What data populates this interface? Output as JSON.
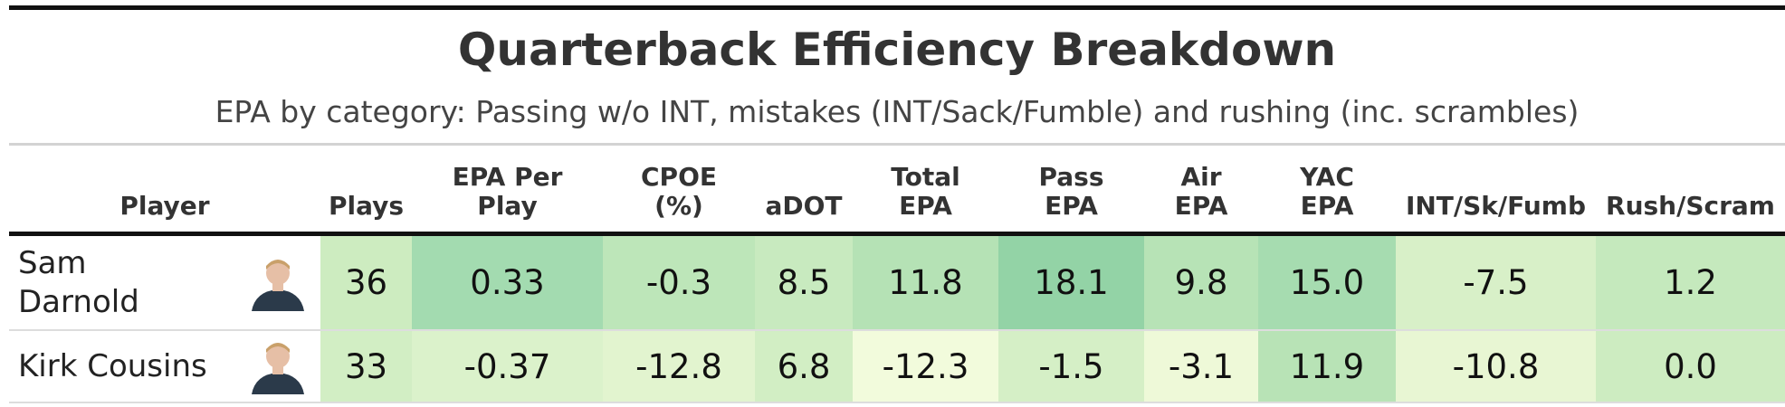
{
  "header": {
    "title": "Quarterback Efficiency Breakdown",
    "subtitle": "EPA by category: Passing w/o INT, mistakes (INT/Sack/Fumble) and rushing (inc. scrambles)"
  },
  "table": {
    "columns": [
      [
        "Player"
      ],
      [
        "Plays"
      ],
      [
        "EPA Per",
        "Play"
      ],
      [
        "CPOE",
        "(%)"
      ],
      [
        "aDOT"
      ],
      [
        "Total",
        "EPA"
      ],
      [
        "Pass",
        "EPA"
      ],
      [
        "Air",
        "EPA"
      ],
      [
        "YAC",
        "EPA"
      ],
      [
        "INT/Sk/Fumb"
      ],
      [
        "Rush/Scram"
      ]
    ],
    "rows": [
      {
        "player": [
          "Sam",
          "Darnold"
        ],
        "cells": [
          "36",
          "0.33",
          "-0.3",
          "8.5",
          "11.8",
          "18.1",
          "9.8",
          "15.0",
          "-7.5",
          "1.2"
        ],
        "colors": [
          "#cdecc0",
          "#a3dbb0",
          "#bde6b9",
          "#c8eabf",
          "#b5e2b5",
          "#93d3a6",
          "#b7e3b6",
          "#a6dcb0",
          "#d8f0c8",
          "#c5e9bd"
        ]
      },
      {
        "player": [
          "Kirk Cousins"
        ],
        "cells": [
          "33",
          "-0.37",
          "-12.8",
          "6.8",
          "-12.3",
          "-1.5",
          "-3.1",
          "11.9",
          "-10.8",
          "0.0"
        ],
        "colors": [
          "#d2eec4",
          "#dbf2cb",
          "#e2f4cf",
          "#d2eec4",
          "#f2fbdc",
          "#d5efc6",
          "#eef9d8",
          "#b8e3b6",
          "#e8f6d3",
          "#cdecc1"
        ]
      }
    ]
  }
}
